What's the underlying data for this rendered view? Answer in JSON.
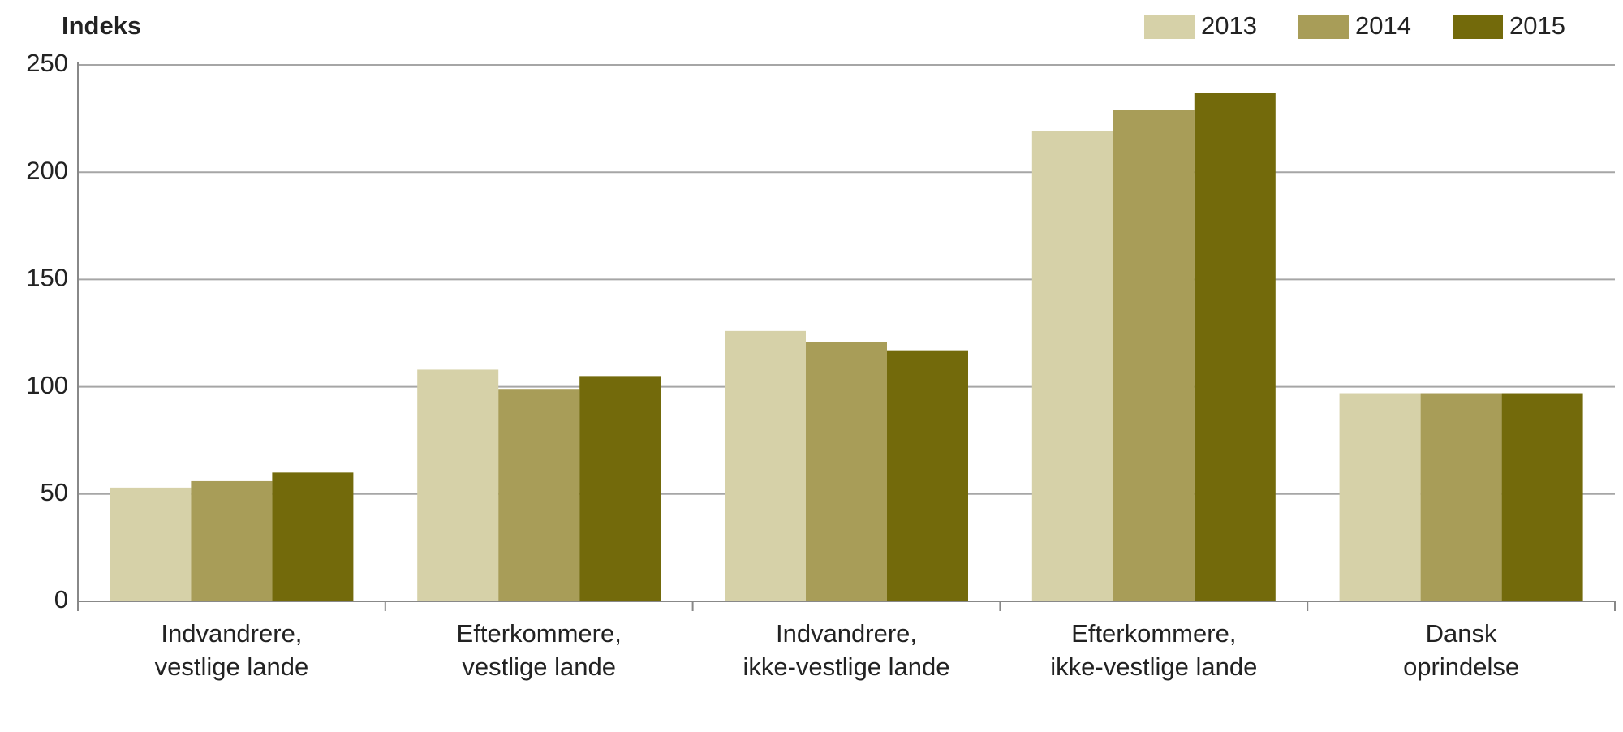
{
  "chart_data": {
    "type": "bar",
    "title": "Indeks",
    "categories": [
      [
        "Indvandrere,",
        "vestlige lande"
      ],
      [
        "Efterkommere,",
        "vestlige lande"
      ],
      [
        "Indvandrere,",
        "ikke-vestlige lande"
      ],
      [
        "Efterkommere,",
        "ikke-vestlige lande"
      ],
      [
        "Dansk",
        "oprindelse"
      ]
    ],
    "series": [
      {
        "name": "2013",
        "color": "#d6d1a8",
        "values": [
          53,
          108,
          126,
          219,
          97
        ]
      },
      {
        "name": "2014",
        "color": "#a89d58",
        "values": [
          56,
          99,
          121,
          229,
          97
        ]
      },
      {
        "name": "2015",
        "color": "#736a0b",
        "values": [
          60,
          105,
          117,
          237,
          97
        ]
      }
    ],
    "ylim": [
      0,
      250
    ],
    "yticks": [
      0,
      50,
      100,
      150,
      200,
      250
    ],
    "grid": true,
    "legend": "top-right"
  }
}
